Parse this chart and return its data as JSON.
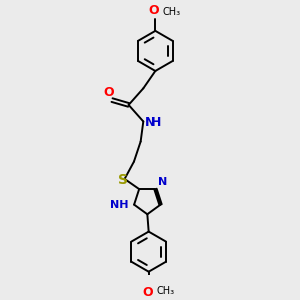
{
  "bg_color": "#ebebeb",
  "bond_color": "#000000",
  "O_color": "#ff0000",
  "N_color": "#0000cc",
  "S_color": "#999900",
  "line_width": 1.4,
  "font_size": 8,
  "fig_size": [
    3.0,
    3.0
  ],
  "dpi": 100,
  "xlim": [
    0,
    10
  ],
  "ylim": [
    0,
    10
  ]
}
